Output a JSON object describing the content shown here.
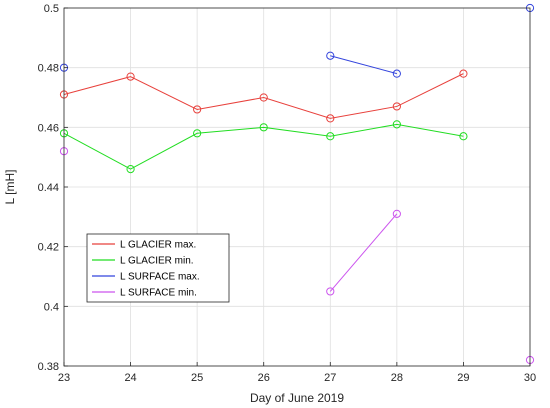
{
  "chart_data": {
    "type": "line",
    "title": "",
    "xlabel": "Day of June 2019",
    "ylabel": "L [mH]",
    "xlim": [
      23,
      30
    ],
    "ylim": [
      0.38,
      0.5
    ],
    "xticks": [
      23,
      24,
      25,
      26,
      27,
      28,
      29,
      30
    ],
    "yticks": [
      0.38,
      0.4,
      0.42,
      0.44,
      0.46,
      0.48,
      0.5
    ],
    "grid": true,
    "legend_position": "lower-left",
    "series": [
      {
        "name": "L GLACIER max.",
        "color": "#e8413c",
        "x": [
          23,
          24,
          25,
          26,
          27,
          28,
          29
        ],
        "y": [
          0.471,
          0.477,
          0.466,
          0.47,
          0.463,
          0.467,
          0.478
        ]
      },
      {
        "name": "L GLACIER min.",
        "color": "#22dd22",
        "x": [
          23,
          24,
          25,
          26,
          27,
          28,
          29
        ],
        "y": [
          0.458,
          0.446,
          0.458,
          0.46,
          0.457,
          0.461,
          0.457
        ]
      },
      {
        "name": "L SURFACE max.",
        "color": "#3344dd",
        "x": [
          23,
          27,
          28,
          30
        ],
        "y": [
          0.48,
          0.484,
          0.478,
          0.5
        ],
        "segments": [
          [
            0
          ],
          [
            1,
            2
          ],
          [
            3
          ]
        ]
      },
      {
        "name": "L SURFACE min.",
        "color": "#cc55ee",
        "x": [
          23,
          27,
          28,
          30
        ],
        "y": [
          0.452,
          0.405,
          0.431,
          0.382
        ],
        "segments": [
          [
            0
          ],
          [
            1,
            2
          ],
          [
            3
          ]
        ]
      }
    ]
  }
}
